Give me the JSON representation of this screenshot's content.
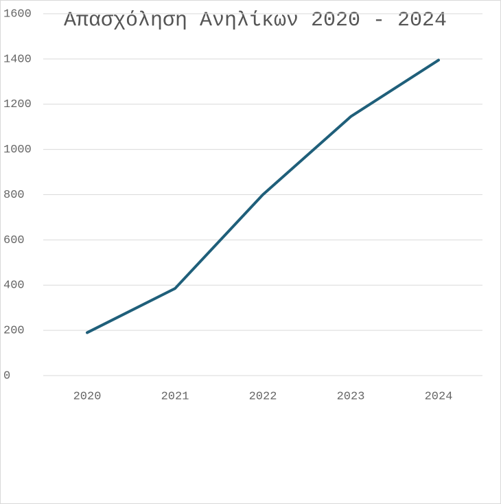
{
  "chart_data": {
    "type": "line",
    "title": "Απασχόληση Ανηλίκων 2020 - 2024",
    "categories": [
      "2020",
      "2021",
      "2022",
      "2023",
      "2024"
    ],
    "values": [
      190,
      385,
      800,
      1145,
      1395
    ],
    "color": "#1f5f7a",
    "ylim": [
      0,
      1600
    ],
    "yticks": [
      0,
      200,
      400,
      600,
      800,
      1000,
      1200,
      1400,
      1600
    ],
    "grid": true
  }
}
